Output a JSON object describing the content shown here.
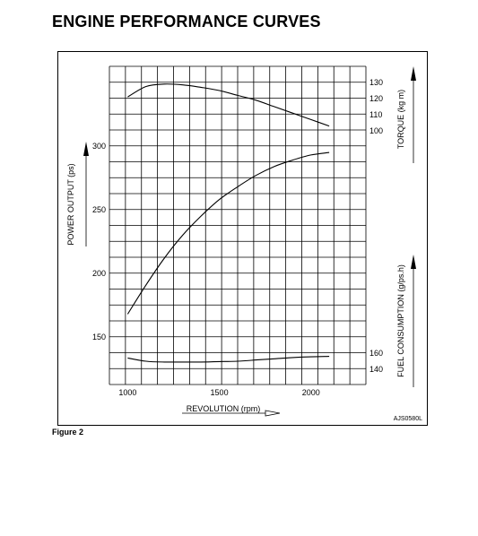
{
  "page": {
    "title": "ENGINE PERFORMANCE CURVES",
    "figure_caption": "Figure 2",
    "ref_code": "AJS0580L"
  },
  "chart_data": {
    "type": "line",
    "xlabel": "REVOLUTION (rpm)",
    "x_ticks": [
      1000,
      1500,
      2000
    ],
    "xlim": [
      900,
      2300
    ],
    "series": [
      {
        "name": "POWER OUTPUT (ps)",
        "unit": "ps",
        "axis": "left",
        "ticks": [
          150,
          200,
          250,
          300
        ],
        "x": [
          1000,
          1100,
          1200,
          1300,
          1400,
          1500,
          1600,
          1700,
          1800,
          1900,
          2000,
          2100
        ],
        "y": [
          168,
          191,
          212,
          230,
          245,
          258,
          268,
          277,
          284,
          289,
          293,
          295
        ]
      },
      {
        "name": "TORQUE (kg m)",
        "unit": "kg m",
        "axis": "right-upper",
        "ticks": [
          100,
          110,
          120,
          130
        ],
        "x": [
          1000,
          1100,
          1200,
          1300,
          1400,
          1500,
          1600,
          1700,
          1800,
          1900,
          2000,
          2100
        ],
        "y": [
          121,
          127.5,
          129,
          128.5,
          127,
          125,
          122,
          119,
          115,
          111,
          107,
          103
        ]
      },
      {
        "name": "FUEL CONSUMPTION (g/ps.h)",
        "unit": "g/ps.h",
        "axis": "right-lower",
        "ticks": [
          140,
          160
        ],
        "x": [
          1000,
          1100,
          1200,
          1300,
          1400,
          1500,
          1600,
          1700,
          1800,
          1900,
          2000,
          2100
        ],
        "y": [
          154,
          150,
          149,
          149,
          149,
          149.5,
          150,
          151.5,
          153,
          154.5,
          155.5,
          156
        ]
      }
    ],
    "grid": true
  }
}
